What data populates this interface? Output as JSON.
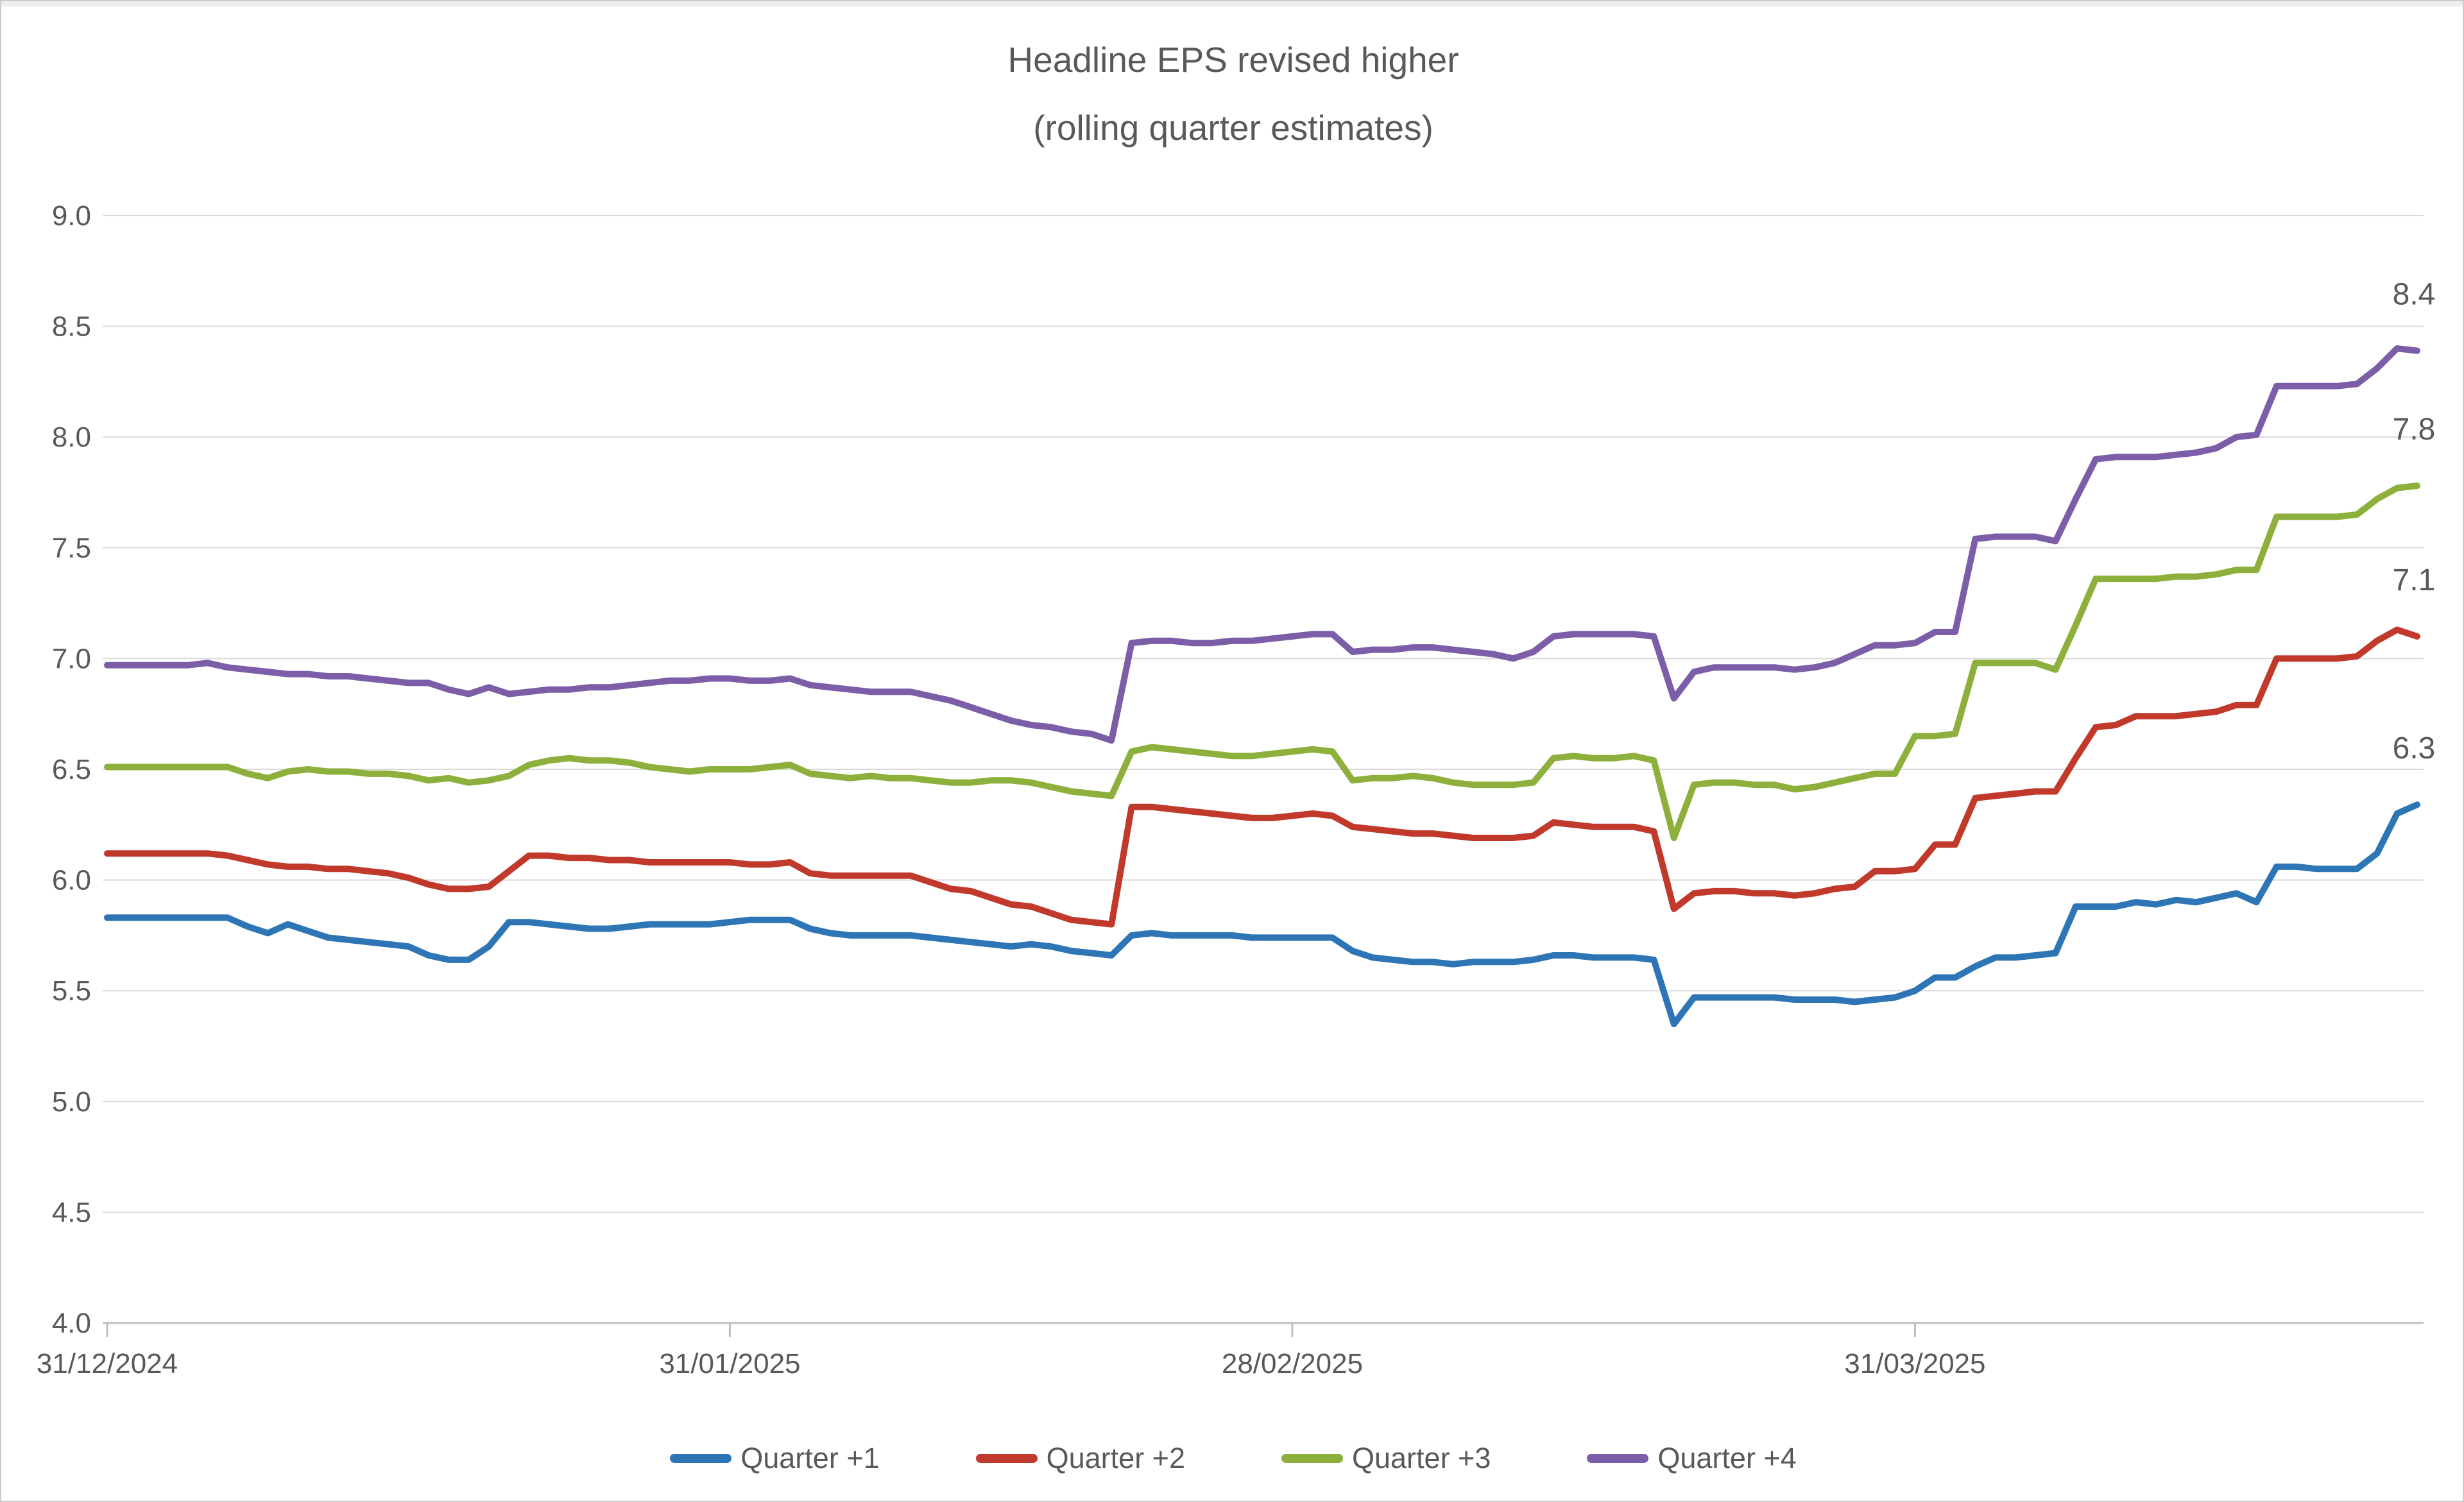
{
  "window": {
    "background": "#ffffff",
    "border_color": "#c9c9c9"
  },
  "title": {
    "line1": "Headline EPS revised higher",
    "line2": "(rolling quarter estimates)",
    "color": "#595959"
  },
  "legend": {
    "items": [
      {
        "label": "Quarter +1",
        "color": "#2E75B6"
      },
      {
        "label": "Quarter +2",
        "color": "#C0392B"
      },
      {
        "label": "Quarter +3",
        "color": "#8DB03C"
      },
      {
        "label": "Quarter +4",
        "color": "#7B5EA7"
      }
    ]
  },
  "chart_data": {
    "type": "line",
    "title": "Headline EPS revised higher (rolling quarter estimates)",
    "xlabel": "",
    "ylabel": "",
    "ylim": [
      4.0,
      9.0
    ],
    "y_tick_step": 0.5,
    "y_tick_labels": [
      "9.0",
      "8.5",
      "8.0",
      "7.5",
      "7.0",
      "6.5",
      "6.0",
      "5.5",
      "5.0",
      "4.5",
      "4.0"
    ],
    "x_start_date": "31/12/2024",
    "x_end_date": "25/04/2025",
    "x_tick_labels": [
      "31/12/2024",
      "31/01/2025",
      "28/02/2025",
      "31/03/2025"
    ],
    "x_tick_point_indices": [
      0,
      31,
      59,
      90
    ],
    "points_per_series": 116,
    "grid": true,
    "legend_position": "bottom",
    "styles": {
      "grid_color": "#D9D9D9",
      "axis_color": "#BFBFBF",
      "label_color": "#595959",
      "line_width": 10,
      "tick_font_size": 44,
      "end_label_font_size": 48
    },
    "series": [
      {
        "name": "Quarter +1",
        "color": "#2E75B6",
        "end_label": "6.3",
        "values": [
          5.83,
          5.83,
          5.83,
          5.83,
          5.83,
          5.83,
          5.83,
          5.79,
          5.76,
          5.8,
          5.77,
          5.74,
          5.73,
          5.72,
          5.71,
          5.7,
          5.66,
          5.64,
          5.64,
          5.7,
          5.81,
          5.81,
          5.8,
          5.79,
          5.78,
          5.78,
          5.79,
          5.8,
          5.8,
          5.8,
          5.8,
          5.81,
          5.82,
          5.82,
          5.82,
          5.78,
          5.76,
          5.75,
          5.75,
          5.75,
          5.75,
          5.74,
          5.73,
          5.72,
          5.71,
          5.7,
          5.71,
          5.7,
          5.68,
          5.67,
          5.66,
          5.75,
          5.76,
          5.75,
          5.75,
          5.75,
          5.75,
          5.74,
          5.74,
          5.74,
          5.74,
          5.74,
          5.68,
          5.65,
          5.64,
          5.63,
          5.63,
          5.62,
          5.63,
          5.63,
          5.63,
          5.64,
          5.66,
          5.66,
          5.65,
          5.65,
          5.65,
          5.64,
          5.35,
          5.47,
          5.47,
          5.47,
          5.47,
          5.47,
          5.46,
          5.46,
          5.46,
          5.45,
          5.46,
          5.47,
          5.5,
          5.56,
          5.56,
          5.61,
          5.65,
          5.65,
          5.66,
          5.67,
          5.88,
          5.88,
          5.88,
          5.9,
          5.89,
          5.91,
          5.9,
          5.92,
          5.94,
          5.9,
          6.06,
          6.06,
          6.05,
          6.05,
          6.05,
          6.12,
          6.3,
          6.34
        ]
      },
      {
        "name": "Quarter +2",
        "color": "#C0392B",
        "end_label": "7.1",
        "values": [
          6.12,
          6.12,
          6.12,
          6.12,
          6.12,
          6.12,
          6.11,
          6.09,
          6.07,
          6.06,
          6.06,
          6.05,
          6.05,
          6.04,
          6.03,
          6.01,
          5.98,
          5.96,
          5.96,
          5.97,
          6.04,
          6.11,
          6.11,
          6.1,
          6.1,
          6.09,
          6.09,
          6.08,
          6.08,
          6.08,
          6.08,
          6.08,
          6.07,
          6.07,
          6.08,
          6.03,
          6.02,
          6.02,
          6.02,
          6.02,
          6.02,
          5.99,
          5.96,
          5.95,
          5.92,
          5.89,
          5.88,
          5.85,
          5.82,
          5.81,
          5.8,
          6.33,
          6.33,
          6.32,
          6.31,
          6.3,
          6.29,
          6.28,
          6.28,
          6.29,
          6.3,
          6.29,
          6.24,
          6.23,
          6.22,
          6.21,
          6.21,
          6.2,
          6.19,
          6.19,
          6.19,
          6.2,
          6.26,
          6.25,
          6.24,
          6.24,
          6.24,
          6.22,
          5.87,
          5.94,
          5.95,
          5.95,
          5.94,
          5.94,
          5.93,
          5.94,
          5.96,
          5.97,
          6.04,
          6.04,
          6.05,
          6.16,
          6.16,
          6.37,
          6.38,
          6.39,
          6.4,
          6.4,
          6.55,
          6.69,
          6.7,
          6.74,
          6.74,
          6.74,
          6.75,
          6.76,
          6.79,
          6.79,
          7.0,
          7.0,
          7.0,
          7.0,
          7.01,
          7.08,
          7.13,
          7.1
        ]
      },
      {
        "name": "Quarter +3",
        "color": "#8DB03C",
        "end_label": "7.8",
        "values": [
          6.51,
          6.51,
          6.51,
          6.51,
          6.51,
          6.51,
          6.51,
          6.48,
          6.46,
          6.49,
          6.5,
          6.49,
          6.49,
          6.48,
          6.48,
          6.47,
          6.45,
          6.46,
          6.44,
          6.45,
          6.47,
          6.52,
          6.54,
          6.55,
          6.54,
          6.54,
          6.53,
          6.51,
          6.5,
          6.49,
          6.5,
          6.5,
          6.5,
          6.51,
          6.52,
          6.48,
          6.47,
          6.46,
          6.47,
          6.46,
          6.46,
          6.45,
          6.44,
          6.44,
          6.45,
          6.45,
          6.44,
          6.42,
          6.4,
          6.39,
          6.38,
          6.58,
          6.6,
          6.59,
          6.58,
          6.57,
          6.56,
          6.56,
          6.57,
          6.58,
          6.59,
          6.58,
          6.45,
          6.46,
          6.46,
          6.47,
          6.46,
          6.44,
          6.43,
          6.43,
          6.43,
          6.44,
          6.55,
          6.56,
          6.55,
          6.55,
          6.56,
          6.54,
          6.19,
          6.43,
          6.44,
          6.44,
          6.43,
          6.43,
          6.41,
          6.42,
          6.44,
          6.46,
          6.48,
          6.48,
          6.65,
          6.65,
          6.66,
          6.98,
          6.98,
          6.98,
          6.98,
          6.95,
          7.15,
          7.36,
          7.36,
          7.36,
          7.36,
          7.37,
          7.37,
          7.38,
          7.4,
          7.4,
          7.64,
          7.64,
          7.64,
          7.64,
          7.65,
          7.72,
          7.77,
          7.78
        ]
      },
      {
        "name": "Quarter +4",
        "color": "#7B5EA7",
        "end_label": "8.4",
        "values": [
          6.97,
          6.97,
          6.97,
          6.97,
          6.97,
          6.98,
          6.96,
          6.95,
          6.94,
          6.93,
          6.93,
          6.92,
          6.92,
          6.91,
          6.9,
          6.89,
          6.89,
          6.86,
          6.84,
          6.87,
          6.84,
          6.85,
          6.86,
          6.86,
          6.87,
          6.87,
          6.88,
          6.89,
          6.9,
          6.9,
          6.91,
          6.91,
          6.9,
          6.9,
          6.91,
          6.88,
          6.87,
          6.86,
          6.85,
          6.85,
          6.85,
          6.83,
          6.81,
          6.78,
          6.75,
          6.72,
          6.7,
          6.69,
          6.67,
          6.66,
          6.63,
          7.07,
          7.08,
          7.08,
          7.07,
          7.07,
          7.08,
          7.08,
          7.09,
          7.1,
          7.11,
          7.11,
          7.03,
          7.04,
          7.04,
          7.05,
          7.05,
          7.04,
          7.03,
          7.02,
          7.0,
          7.03,
          7.1,
          7.11,
          7.11,
          7.11,
          7.11,
          7.1,
          6.82,
          6.94,
          6.96,
          6.96,
          6.96,
          6.96,
          6.95,
          6.96,
          6.98,
          7.02,
          7.06,
          7.06,
          7.07,
          7.12,
          7.12,
          7.54,
          7.55,
          7.55,
          7.55,
          7.53,
          7.72,
          7.9,
          7.91,
          7.91,
          7.91,
          7.92,
          7.93,
          7.95,
          8.0,
          8.01,
          8.23,
          8.23,
          8.23,
          8.23,
          8.24,
          8.31,
          8.4,
          8.39
        ]
      }
    ]
  }
}
